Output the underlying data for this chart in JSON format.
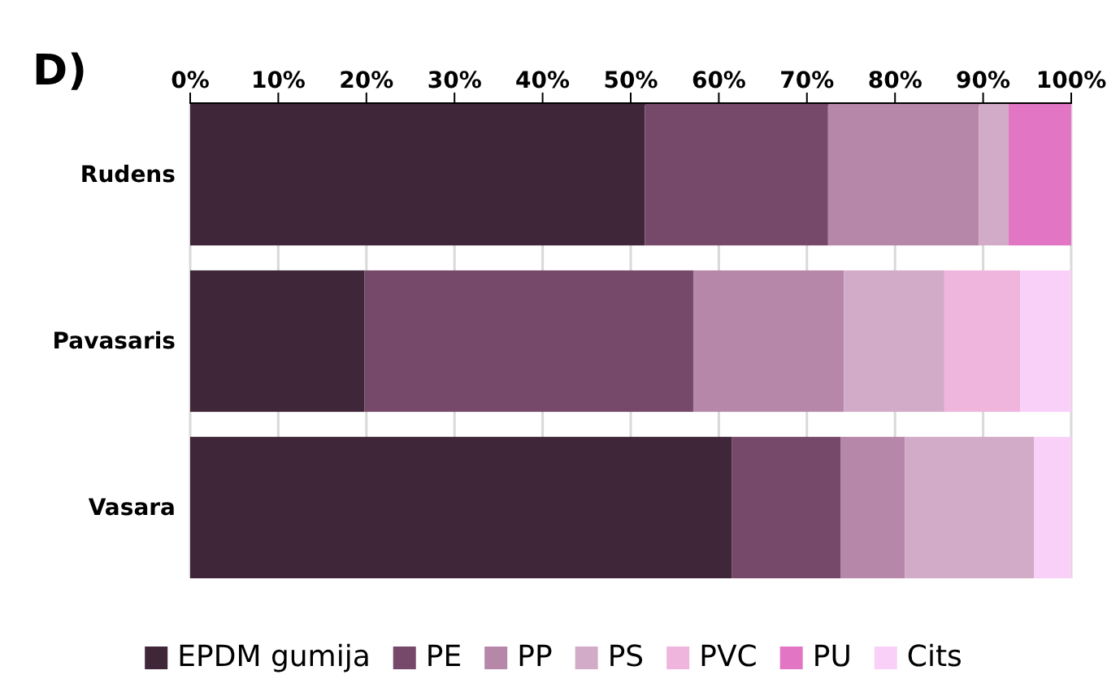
{
  "chart_data": {
    "type": "bar",
    "title": "D)",
    "orientation": "horizontal",
    "stacked": true,
    "categories": [
      "Rudens",
      "Pavasaris",
      "Vasara"
    ],
    "series": [
      {
        "name": "EPDM gumija",
        "color": "#3f2639",
        "values": [
          51.6,
          19.8,
          61.5
        ]
      },
      {
        "name": "PE",
        "color": "#76496a",
        "values": [
          20.8,
          37.3,
          12.3
        ]
      },
      {
        "name": "PP",
        "color": "#b687a9",
        "values": [
          17.1,
          17.1,
          7.3
        ]
      },
      {
        "name": "PS",
        "color": "#d2abc8",
        "values": [
          3.4,
          11.4,
          14.7
        ]
      },
      {
        "name": "PVC",
        "color": "#f0b5dd",
        "values": [
          0,
          8.6,
          0
        ]
      },
      {
        "name": "PU",
        "color": "#e276c5",
        "values": [
          7.1,
          0,
          0
        ]
      },
      {
        "name": "Cits",
        "color": "#f9d0f7",
        "values": [
          0,
          5.8,
          4.2
        ]
      }
    ],
    "xlim": [
      0,
      100
    ],
    "xticks": [
      {
        "value": 0,
        "label": "0%"
      },
      {
        "value": 10,
        "label": "10%"
      },
      {
        "value": 20,
        "label": "20%"
      },
      {
        "value": 30,
        "label": "30%"
      },
      {
        "value": 40,
        "label": "40%"
      },
      {
        "value": 50,
        "label": "50%"
      },
      {
        "value": 60,
        "label": "60%"
      },
      {
        "value": 70,
        "label": "70%"
      },
      {
        "value": 80,
        "label": "80%"
      },
      {
        "value": 90,
        "label": "90%"
      },
      {
        "value": 100,
        "label": "100%"
      }
    ],
    "grid": "x",
    "legend": "bottom"
  }
}
